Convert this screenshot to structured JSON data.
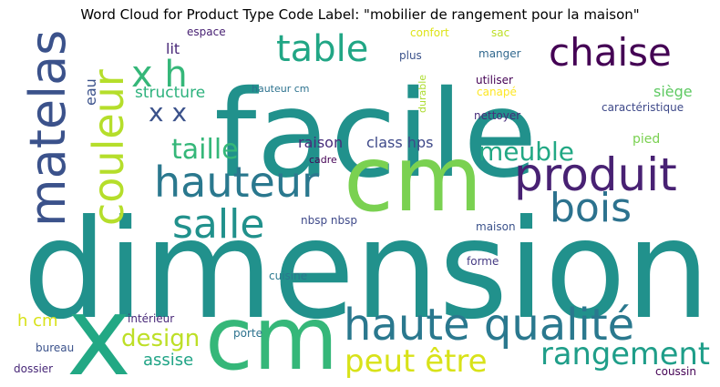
{
  "chart_data": {
    "type": "wordcloud",
    "title": "Word Cloud for Product Type Code Label: \"mobilier de rangement pour la maison\"",
    "words": [
      {
        "text": "dimension",
        "color": "#21918c"
      },
      {
        "text": "facile",
        "color": "#21918c"
      },
      {
        "text": "cm",
        "color": "#7ad151"
      },
      {
        "text": "cm",
        "color": "#35b779"
      },
      {
        "text": "x",
        "color": "#22a884"
      },
      {
        "text": "haute qualité",
        "color": "#2a788e"
      },
      {
        "text": "matelas",
        "color": "#3b528b"
      },
      {
        "text": "produit",
        "color": "#482173"
      },
      {
        "text": "hauteur",
        "color": "#2a788e"
      },
      {
        "text": "couleur",
        "color": "#b5de2b"
      },
      {
        "text": "salle",
        "color": "#21918c"
      },
      {
        "text": "bois",
        "color": "#2c728e"
      },
      {
        "text": "chaise",
        "color": "#440154"
      },
      {
        "text": "table",
        "color": "#21a685"
      },
      {
        "text": "x h",
        "color": "#35b779"
      },
      {
        "text": "rangement",
        "color": "#1f9e89"
      },
      {
        "text": "peut être",
        "color": "#d8e219"
      },
      {
        "text": "taille",
        "color": "#35b779"
      },
      {
        "text": "meuble",
        "color": "#22a884"
      },
      {
        "text": "design",
        "color": "#bddf26"
      },
      {
        "text": "x x",
        "color": "#3b528b"
      },
      {
        "text": "structure",
        "color": "#2db27d"
      },
      {
        "text": "raison",
        "color": "#472d7b"
      },
      {
        "text": "class hps",
        "color": "#3e4989"
      },
      {
        "text": "h cm",
        "color": "#d8e219"
      },
      {
        "text": "siège",
        "color": "#5ec962"
      },
      {
        "text": "assise",
        "color": "#20a486"
      },
      {
        "text": "lit",
        "color": "#482878"
      },
      {
        "text": "pied",
        "color": "#7ad151"
      },
      {
        "text": "eau",
        "color": "#3b528b"
      },
      {
        "text": "espace",
        "color": "#482173"
      },
      {
        "text": "confort",
        "color": "#dde318"
      },
      {
        "text": "sac",
        "color": "#bddf26"
      },
      {
        "text": "plus",
        "color": "#3b528b"
      },
      {
        "text": "manger",
        "color": "#31688e"
      },
      {
        "text": "utiliser",
        "color": "#440154"
      },
      {
        "text": "canapé",
        "color": "#fde725"
      },
      {
        "text": "hauteur cm",
        "color": "#2c728e"
      },
      {
        "text": "durable",
        "color": "#addc30"
      },
      {
        "text": "nettoyer",
        "color": "#472d7b"
      },
      {
        "text": "caractéristique",
        "color": "#3e4989"
      },
      {
        "text": "cadre",
        "color": "#440154"
      },
      {
        "text": "nbsp nbsp",
        "color": "#3e4989"
      },
      {
        "text": "maison",
        "color": "#3b528b"
      },
      {
        "text": "forme",
        "color": "#443a83"
      },
      {
        "text": "cuisine",
        "color": "#2a788e"
      },
      {
        "text": "intérieur",
        "color": "#482878"
      },
      {
        "text": "porte",
        "color": "#2c728e"
      },
      {
        "text": "bureau",
        "color": "#3b528b"
      },
      {
        "text": "dossier",
        "color": "#482878"
      },
      {
        "text": "coussin",
        "color": "#440154"
      }
    ]
  }
}
